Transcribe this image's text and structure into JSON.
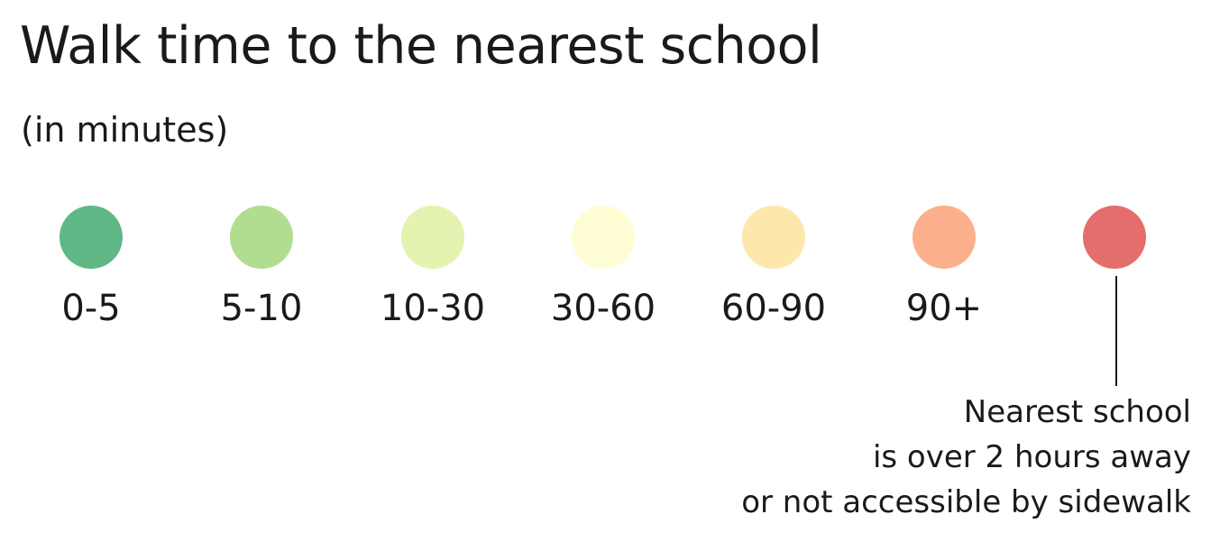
{
  "title": "Walk time to the nearest school",
  "subtitle": "(in minutes)",
  "legend": [
    {
      "label": "0-5",
      "color": "#5fb886"
    },
    {
      "label": "5-10",
      "color": "#b1dd90"
    },
    {
      "label": "10-30",
      "color": "#e4f3af"
    },
    {
      "label": "30-60",
      "color": "#fffdd4"
    },
    {
      "label": "60-90",
      "color": "#fde7ad"
    },
    {
      "label": "90+",
      "color": "#fbb08b"
    },
    {
      "label": "",
      "color": "#e46e6c"
    }
  ],
  "note": {
    "line1": "Nearest school",
    "line2": "is over 2 hours away",
    "line3": "or not accessible by sidewalk"
  }
}
